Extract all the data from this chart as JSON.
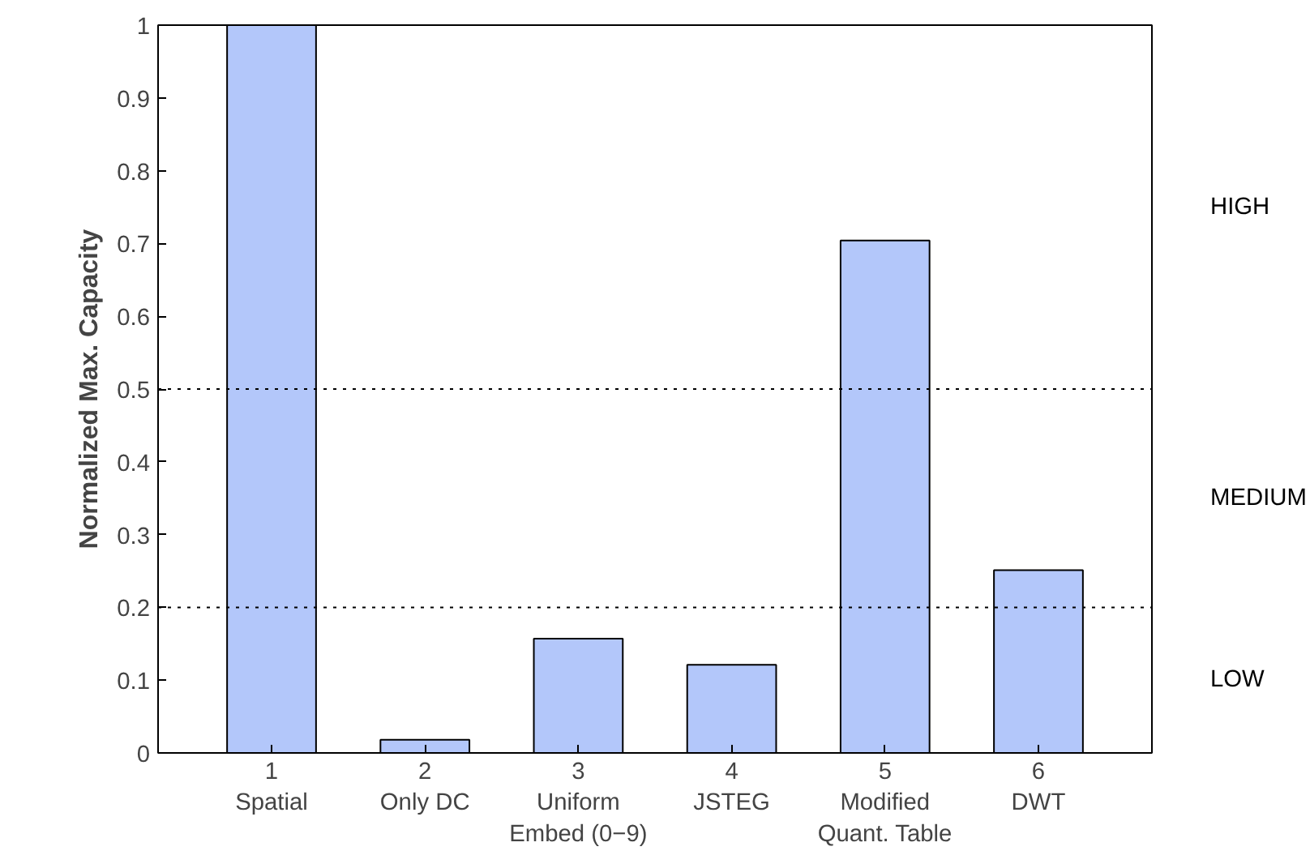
{
  "chart_data": {
    "type": "bar",
    "ylabel": "Normalized Max. Capacity",
    "categories": [
      "1\nSpatial",
      "2\nOnly DC",
      "3\nUniform\nEmbed (0−9)",
      "4\nJSTEG",
      "5\nModified\nQuant. Table",
      "6\nDWT"
    ],
    "values": [
      1.0,
      0.018,
      0.157,
      0.121,
      0.704,
      0.251
    ],
    "color": "#b3c7fa",
    "ylim": [
      0,
      1
    ],
    "yticks": [
      0,
      0.1,
      0.2,
      0.3,
      0.4,
      0.5,
      0.6,
      0.7,
      0.8,
      0.9,
      1
    ],
    "grid": false,
    "ref_lines": [
      {
        "axis": "y",
        "value": 0.5,
        "line_style": "dotted",
        "color": "#000000"
      },
      {
        "axis": "y",
        "value": 0.2,
        "line_style": "dotted",
        "color": "#000000"
      }
    ],
    "annotations": [
      "HIGH",
      "MEDIUM",
      "LOW"
    ]
  }
}
